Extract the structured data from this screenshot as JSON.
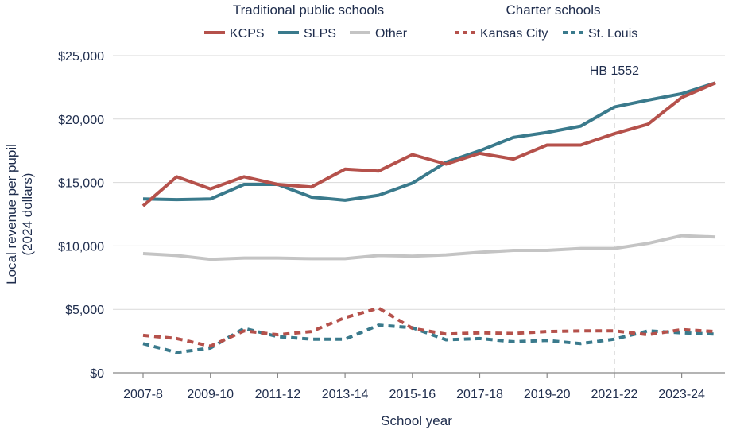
{
  "chart_data": {
    "type": "line",
    "xlabel": "School year",
    "ylabel_lines": [
      "Local revenue per pupil",
      "(2024 dollars)"
    ],
    "ylim": [
      0,
      25000
    ],
    "yticks": [
      0,
      5000,
      10000,
      15000,
      20000,
      25000
    ],
    "ytick_labels": [
      "$0",
      "$5,000",
      "$10,000",
      "$15,000",
      "$20,000",
      "$25,000"
    ],
    "grid": "horizontal",
    "x": [
      "2007-8",
      "2008-9",
      "2009-10",
      "2010-11",
      "2011-12",
      "2012-13",
      "2013-14",
      "2014-15",
      "2015-16",
      "2016-17",
      "2017-18",
      "2018-19",
      "2019-20",
      "2020-21",
      "2021-22",
      "2022-23",
      "2023-24",
      "2024-25"
    ],
    "xtick_labels": [
      "2007-8",
      "2009-10",
      "2011-12",
      "2013-14",
      "2015-16",
      "2017-18",
      "2019-20",
      "2021-22",
      "2023-24"
    ],
    "xtick_indices": [
      0,
      2,
      4,
      6,
      8,
      10,
      12,
      14,
      16
    ],
    "legend_groups": [
      "Traditional public schools",
      "Charter schools"
    ],
    "series": [
      {
        "name": "KCPS",
        "group": "Traditional public schools",
        "color": "#b5514b",
        "style": "solid",
        "values": [
          13150,
          15450,
          14500,
          15450,
          14850,
          14650,
          16050,
          15900,
          17200,
          16450,
          17300,
          16850,
          17950,
          17950,
          18850,
          19600,
          21700,
          22850
        ]
      },
      {
        "name": "SLPS",
        "group": "Traditional public schools",
        "color": "#3a7a8c",
        "style": "solid",
        "values": [
          13700,
          13650,
          13700,
          14850,
          14850,
          13850,
          13600,
          14000,
          14950,
          16600,
          17500,
          18550,
          18950,
          19450,
          20950,
          21500,
          22000,
          22850
        ]
      },
      {
        "name": "Other",
        "group": "Traditional public schools",
        "color": "#c4c4c4",
        "style": "solid",
        "values": [
          9400,
          9250,
          8950,
          9050,
          9050,
          9000,
          9000,
          9250,
          9200,
          9300,
          9500,
          9650,
          9650,
          9800,
          9800,
          10200,
          10800,
          10700
        ]
      },
      {
        "name": "Kansas City",
        "group": "Charter schools",
        "color": "#b5514b",
        "style": "dashed",
        "values": [
          2950,
          2700,
          2100,
          3300,
          3000,
          3250,
          4350,
          5100,
          3500,
          3050,
          3150,
          3100,
          3250,
          3300,
          3300,
          3000,
          3400,
          3250
        ]
      },
      {
        "name": "St. Louis",
        "group": "Charter schools",
        "color": "#3a7a8c",
        "style": "dashed",
        "values": [
          2300,
          1600,
          1950,
          3500,
          2850,
          2650,
          2650,
          3750,
          3550,
          2600,
          2700,
          2450,
          2550,
          2300,
          2650,
          3300,
          3150,
          3050
        ]
      }
    ],
    "annotations": [
      {
        "text": "HB 1552",
        "x": "2021-22",
        "type": "vertical-dashed-line",
        "color": "#c8c8c8"
      }
    ]
  }
}
